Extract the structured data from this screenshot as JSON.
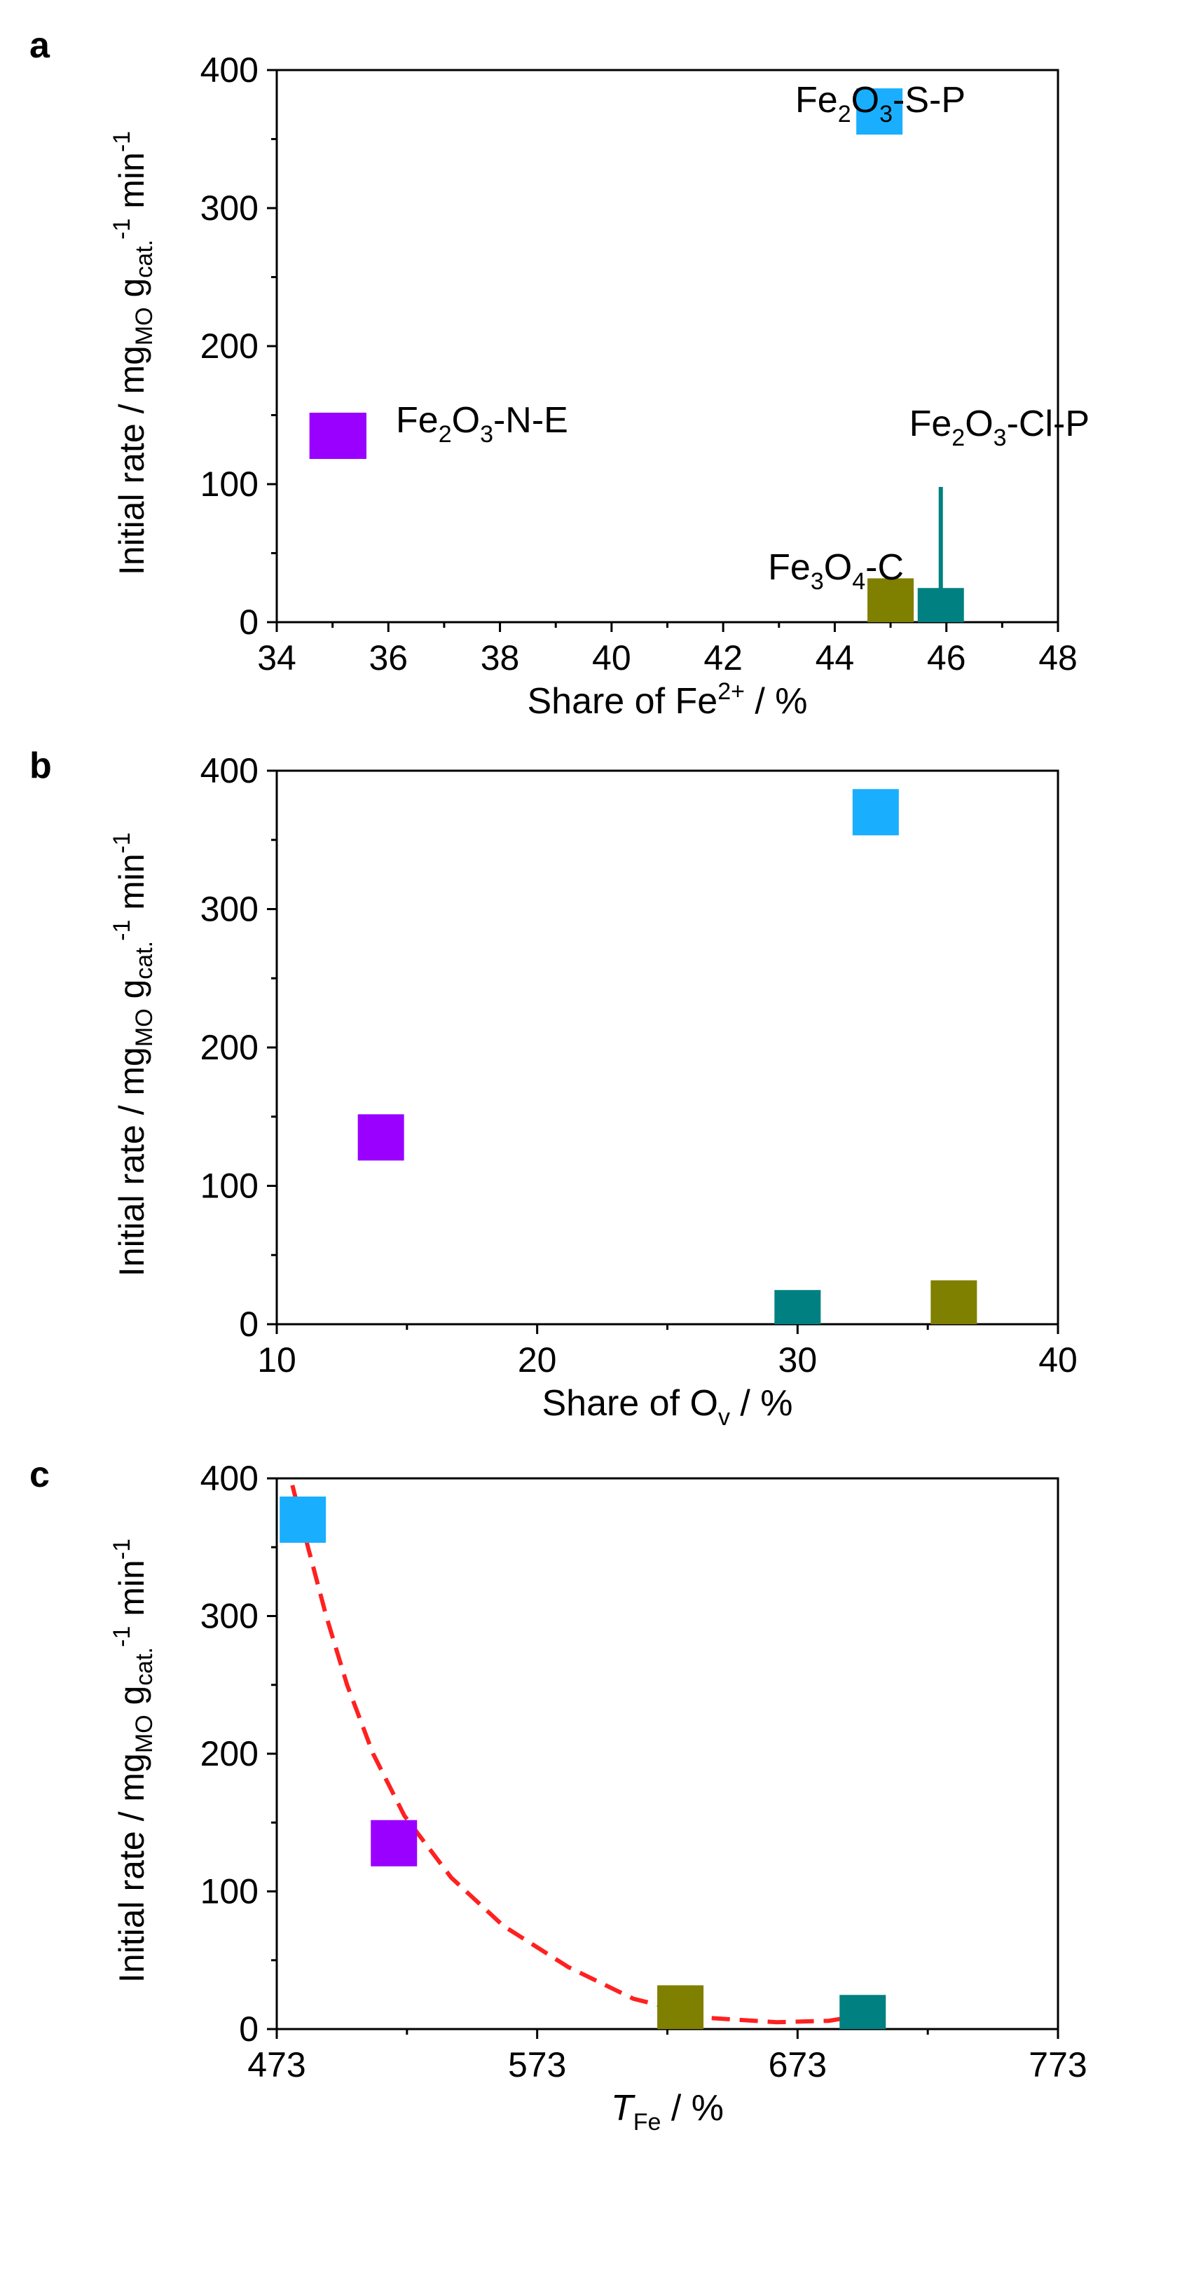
{
  "chart_data": [
    {
      "type": "scatter",
      "panel": "a",
      "ylabel": {
        "main": "Initial rate / mg",
        "sub1": "MO",
        "mid": " g",
        "sub2": "cat.",
        "sup": "-1",
        "tail": " min",
        "sup2": "-1"
      },
      "xlabel": {
        "main": "Share of Fe",
        "sup": "2+",
        "tail": " / %"
      },
      "xlim": [
        34,
        48
      ],
      "xticks": [
        34,
        36,
        38,
        40,
        42,
        44,
        46,
        48
      ],
      "ylim": [
        0,
        400
      ],
      "yticks": [
        0,
        100,
        200,
        300,
        400
      ],
      "points": [
        {
          "series": "Fe2O3-S-P",
          "x": 44.8,
          "y": 370,
          "color": "#1aaeff"
        },
        {
          "series": "Fe2O3-N-E",
          "x": 35.0,
          "y": 135,
          "color": "#9900ff"
        },
        {
          "series": "Fe3O4-C",
          "x": 45.0,
          "y": 15,
          "color": "#7f7f00"
        },
        {
          "series": "Fe2O3-Cl-P",
          "x": 45.9,
          "y": 8,
          "color": "#008080"
        }
      ],
      "legend": [
        {
          "pre": "Fe",
          "s1": "2",
          "mid": "O",
          "s2": "3",
          "post": "-S-P",
          "color": "#1aaeff"
        },
        {
          "pre": "Fe",
          "s1": "2",
          "mid": "O",
          "s2": "3",
          "post": "-N-E",
          "color": "#9900ff"
        },
        {
          "pre": "Fe",
          "s1": "2",
          "mid": "O",
          "s2": "3",
          "post": "-Cl-P",
          "color": "#008080"
        },
        {
          "pre": "Fe",
          "s1": "3",
          "mid": "O",
          "s2": "4",
          "post": "-C",
          "color": "#7f7f00"
        }
      ]
    },
    {
      "type": "scatter",
      "panel": "b",
      "ylabel": {
        "main": "Initial rate / mg",
        "sub1": "MO",
        "mid": " g",
        "sub2": "cat.",
        "sup": "-1",
        "tail": " min",
        "sup2": "-1"
      },
      "xlabel": {
        "main": "Share of O",
        "sub": "v",
        "tail": " / %"
      },
      "xlim": [
        10,
        40
      ],
      "xticks": [
        10,
        20,
        30,
        40
      ],
      "ylim": [
        0,
        400
      ],
      "yticks": [
        0,
        100,
        200,
        300,
        400
      ],
      "points": [
        {
          "series": "Fe2O3-S-P",
          "x": 33,
          "y": 370,
          "color": "#1aaeff"
        },
        {
          "series": "Fe2O3-N-E",
          "x": 14,
          "y": 135,
          "color": "#9900ff"
        },
        {
          "series": "Fe3O4-C",
          "x": 36,
          "y": 15,
          "color": "#7f7f00"
        },
        {
          "series": "Fe2O3-Cl-P",
          "x": 30,
          "y": 8,
          "color": "#008080"
        }
      ]
    },
    {
      "type": "scatter",
      "panel": "c",
      "ylabel": {
        "main": "Initial rate / mg",
        "sub1": "MO",
        "mid": " g",
        "sub2": "cat.",
        "sup": "-1",
        "tail": " min",
        "sup2": "-1"
      },
      "xlabel": {
        "main": "T",
        "sub": "Fe",
        "tail": " / %"
      },
      "xlim": [
        473,
        773
      ],
      "xticks": [
        473,
        573,
        673,
        773
      ],
      "ylim": [
        0,
        400
      ],
      "yticks": [
        0,
        100,
        200,
        300,
        400
      ],
      "points": [
        {
          "series": "Fe2O3-S-P",
          "x": 483,
          "y": 370,
          "color": "#1aaeff"
        },
        {
          "series": "Fe2O3-N-E",
          "x": 518,
          "y": 135,
          "color": "#9900ff"
        },
        {
          "series": "Fe3O4-C",
          "x": 628,
          "y": 15,
          "color": "#7f7f00"
        },
        {
          "series": "Fe2O3-Cl-P",
          "x": 698,
          "y": 8,
          "color": "#008080"
        }
      ],
      "fit": {
        "color": "#ff2020",
        "style": "dashed",
        "points": [
          [
            479,
            395
          ],
          [
            485,
            350
          ],
          [
            492,
            300
          ],
          [
            500,
            250
          ],
          [
            510,
            200
          ],
          [
            522,
            155
          ],
          [
            540,
            110
          ],
          [
            560,
            75
          ],
          [
            585,
            45
          ],
          [
            610,
            22
          ],
          [
            640,
            8
          ],
          [
            665,
            5
          ],
          [
            685,
            6
          ],
          [
            698,
            10
          ]
        ]
      }
    }
  ]
}
